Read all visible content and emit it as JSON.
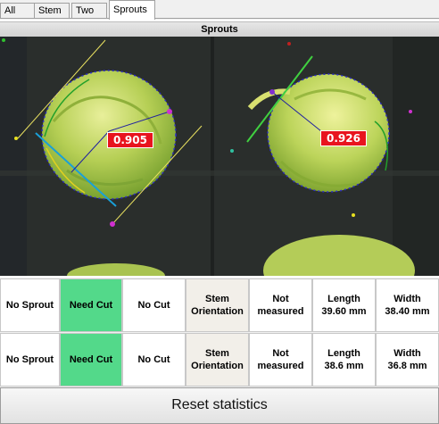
{
  "tabs": [
    {
      "label": "All"
    },
    {
      "label": "Stem"
    },
    {
      "label": "Two"
    },
    {
      "label": "Sprouts"
    }
  ],
  "panel": {
    "title": "Sprouts"
  },
  "detections": [
    {
      "score": "0.905"
    },
    {
      "score": "0.926"
    }
  ],
  "rows": [
    {
      "sprout": "No Sprout",
      "cut": "Need Cut",
      "no_cut": "No Cut",
      "orientation": "Stem\nOrientation",
      "measured": "Not\nmeasured",
      "length": "Length\n39.60 mm",
      "width": "Width\n38.40 mm"
    },
    {
      "sprout": "No Sprout",
      "cut": "Need Cut",
      "no_cut": "No Cut",
      "orientation": "Stem\nOrientation",
      "measured": "Not\nmeasured",
      "length": "Length\n38.6 mm",
      "width": "Width\n36.8 mm"
    }
  ],
  "reset_label": "Reset statistics",
  "colors": {
    "need_cut": "#53d98a",
    "orientation": "#f2efe9",
    "score_bg": "#e8141e"
  }
}
